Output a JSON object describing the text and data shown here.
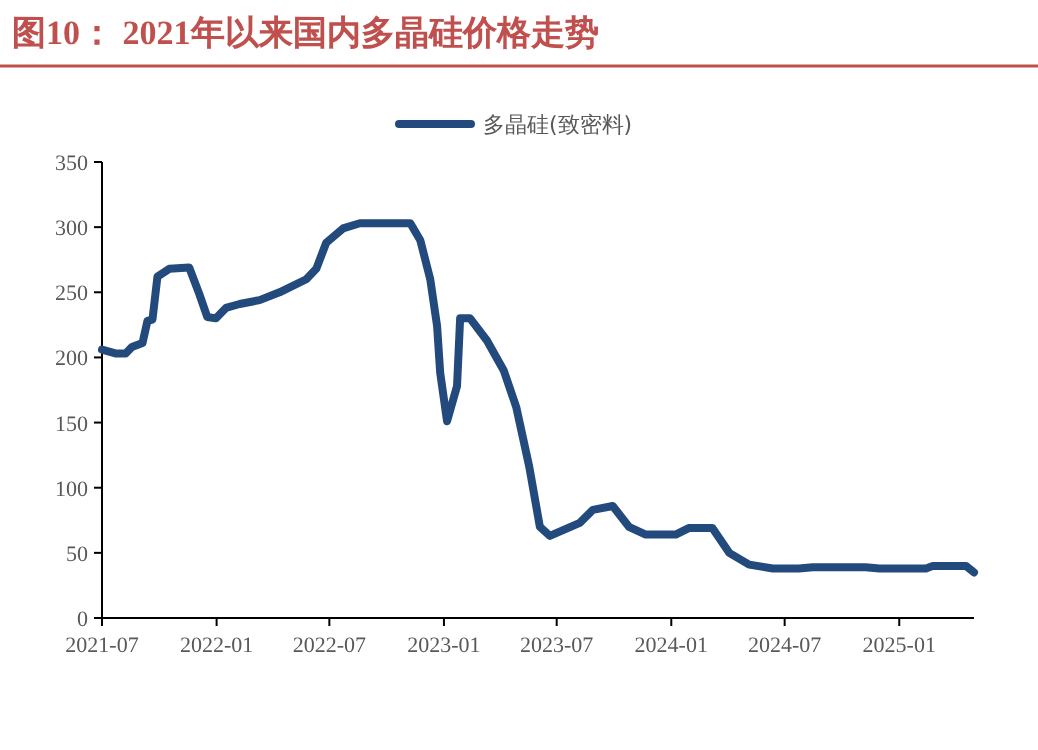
{
  "chart_data": {
    "type": "line",
    "title": "图10：  2021年以来国内多晶硅价格走势",
    "x": [
      "2021-07-01",
      "2021-07-24",
      "2021-08-08",
      "2021-08-18",
      "2021-09-04",
      "2021-09-12",
      "2021-09-20",
      "2021-09-28",
      "2021-10-17",
      "2021-11-18",
      "2021-12-04",
      "2021-12-17",
      "2021-12-31",
      "2022-01-16",
      "2022-02-07",
      "2022-03-11",
      "2022-04-12",
      "2022-05-25",
      "2022-06-10",
      "2022-06-26",
      "2022-07-23",
      "2022-08-19",
      "2022-11-08",
      "2022-11-24",
      "2022-12-10",
      "2022-12-21",
      "2022-12-26",
      "2023-01-06",
      "2023-01-22",
      "2023-01-27",
      "2023-02-12",
      "2023-03-11",
      "2023-04-07",
      "2023-04-27",
      "2023-05-18",
      "2023-06-04",
      "2023-06-20",
      "2023-08-07",
      "2023-08-28",
      "2023-09-29",
      "2023-10-25",
      "2023-11-21",
      "2024-01-08",
      "2024-01-29",
      "2024-03-07",
      "2024-04-03",
      "2024-05-05",
      "2024-06-12",
      "2024-07-24",
      "2024-08-15",
      "2024-11-08",
      "2024-11-30",
      "2025-02-13",
      "2025-02-24",
      "2025-04-18",
      "2025-05-01"
    ],
    "series": [
      {
        "name": "多晶硅(致密料)",
        "color": "#234a7c",
        "values": [
          206,
          203,
          203,
          208,
          211,
          228,
          229,
          262,
          268,
          269,
          249,
          231,
          230,
          238,
          241,
          244,
          250,
          260,
          268,
          288,
          299,
          303,
          303,
          290,
          260,
          224,
          188,
          151,
          178,
          230,
          230,
          213,
          190,
          162,
          116,
          70,
          63,
          73,
          83,
          86,
          70,
          64,
          64,
          69,
          69,
          50,
          41,
          38,
          38,
          39,
          39,
          38,
          38,
          40,
          40,
          35
        ]
      }
    ],
    "xlim": [
      "2021-07-01",
      "2025-05-01"
    ],
    "xticks": [
      "2021-07",
      "2022-01",
      "2022-07",
      "2023-01",
      "2023-07",
      "2024-01",
      "2024-07",
      "2025-01"
    ],
    "ylim": [
      0,
      350
    ],
    "yticks": [
      0,
      50,
      100,
      150,
      200,
      250,
      300,
      350
    ],
    "grid": false,
    "legend": "top",
    "marker": "none",
    "line_style": "solid"
  }
}
